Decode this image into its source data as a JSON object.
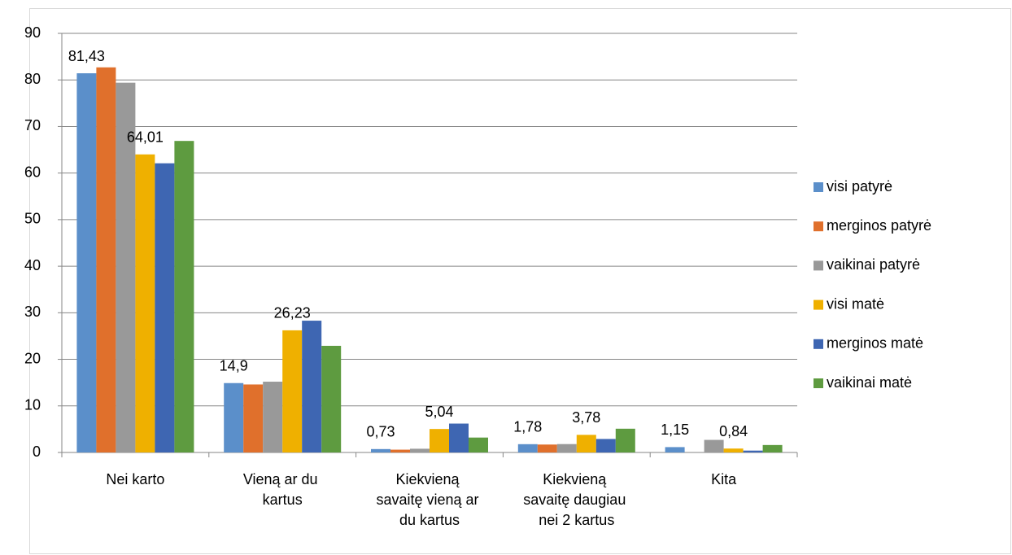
{
  "chart_data": {
    "type": "bar",
    "categories": [
      "Nei karto",
      "Vieną ar du kartus",
      "Kiekvieną savaitę vieną ar du kartus",
      "Kiekvieną savaitę daugiau nei 2 kartus",
      "Kita"
    ],
    "series": [
      {
        "name": "visi patyrė",
        "color": "#5b8fca",
        "values": [
          81.43,
          14.9,
          0.73,
          1.78,
          1.15
        ],
        "value_labels": [
          "81,43",
          "14,9",
          "0,73",
          "1,78",
          "1,15"
        ]
      },
      {
        "name": "merginos  patyrė",
        "color": "#e0702c",
        "values": [
          82.7,
          14.6,
          0.6,
          1.7,
          0
        ]
      },
      {
        "name": "vaikinai  patyrė",
        "color": "#999999",
        "values": [
          79.4,
          15.2,
          0.8,
          1.8,
          2.7
        ]
      },
      {
        "name": "visi matė",
        "color": "#efb000",
        "values": [
          64.01,
          26.23,
          5.04,
          3.78,
          0.84
        ],
        "value_labels": [
          "64,01",
          "26,23",
          "5,04",
          "3,78",
          "0,84"
        ]
      },
      {
        "name": "merginos matė",
        "color": "#3e66b2",
        "values": [
          62.1,
          28.3,
          6.2,
          2.9,
          0.4
        ]
      },
      {
        "name": "vaikinai matė",
        "color": "#5e9b40",
        "values": [
          66.9,
          22.9,
          3.2,
          5.1,
          1.6
        ]
      }
    ],
    "ylim": [
      0,
      90
    ],
    "yticks": [
      0,
      10,
      20,
      30,
      40,
      50,
      60,
      70,
      80,
      90
    ],
    "grid": true,
    "legend": "right"
  }
}
